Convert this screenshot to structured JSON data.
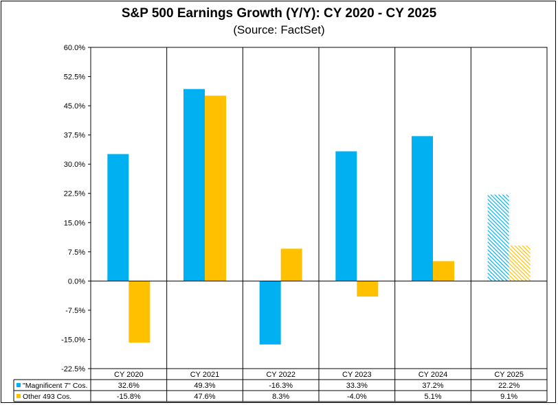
{
  "chart_data": {
    "type": "bar",
    "title": "S&P 500 Earnings Growth (Y/Y): CY 2020 - CY 2025",
    "subtitle": "(Source: FactSet)",
    "categories": [
      "CY 2020",
      "CY 2021",
      "CY 2022",
      "CY 2023",
      "CY 2024",
      "CY 2025"
    ],
    "series": [
      {
        "name": "\"Magnificent 7\" Cos.",
        "color": "#00B0F0",
        "values": [
          32.6,
          49.3,
          -16.3,
          33.3,
          37.2,
          22.2
        ],
        "labels": [
          "32.6%",
          "49.3%",
          "-16.3%",
          "33.3%",
          "37.2%",
          "22.2%"
        ],
        "hatched": [
          false,
          false,
          false,
          false,
          false,
          true
        ]
      },
      {
        "name": "Other 493 Cos.",
        "color": "#FFC000",
        "values": [
          -15.8,
          47.6,
          8.3,
          -4.0,
          5.1,
          9.1
        ],
        "labels": [
          "-15.8%",
          "47.6%",
          "8.3%",
          "-4.0%",
          "5.1%",
          "9.1%"
        ],
        "hatched": [
          false,
          false,
          false,
          false,
          false,
          true
        ]
      }
    ],
    "ylim": [
      -22.5,
      60.0
    ],
    "yticks": [
      -22.5,
      -15.0,
      -7.5,
      0.0,
      7.5,
      15.0,
      22.5,
      30.0,
      37.5,
      45.0,
      52.5,
      60.0
    ],
    "ytick_labels": [
      "-22.5%",
      "-15.0%",
      "-7.5%",
      "0.0%",
      "7.5%",
      "15.0%",
      "22.5%",
      "30.0%",
      "37.5%",
      "45.0%",
      "52.5%",
      "60.0%"
    ],
    "grid": "vertical-category-separators",
    "legend": "data-table-below"
  }
}
